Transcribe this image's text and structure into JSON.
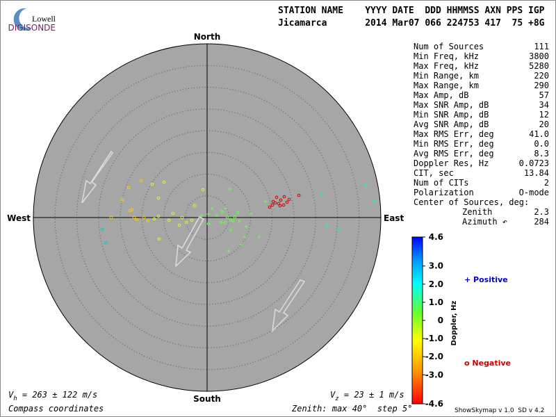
{
  "logo": {
    "top": "Lowell",
    "bottom": "DIGISONDE"
  },
  "header": {
    "columns": "STATION NAME    YYYY DATE  DDD HHMMSS AXN PPS IGP",
    "values": "Jicamarca       2014 Mar07 066 224753 417  75 +8G"
  },
  "compass": {
    "north": "North",
    "south": "South",
    "east": "East",
    "west": "West"
  },
  "stats": [
    [
      "Num of Sources",
      "111"
    ],
    [
      "Min Freq, kHz",
      "3800"
    ],
    [
      "Max Freq, kHz",
      "5280"
    ],
    [
      "Min Range, km",
      "220"
    ],
    [
      "Max Range, km",
      "290"
    ],
    [
      "Max Amp, dB",
      "57"
    ],
    [
      "Max SNR Amp, dB",
      "34"
    ],
    [
      "Min SNR Amp, dB",
      "12"
    ],
    [
      "Avg SNR Amp, dB",
      "20"
    ],
    [
      "Max RMS Err, deg",
      "41.0"
    ],
    [
      "Min RMS Err, deg",
      "0.0"
    ],
    [
      "Avg RMS Err, deg",
      "8.3"
    ],
    [
      "Doppler Res, Hz",
      "0.0723"
    ],
    [
      "CIT, sec",
      "13.84"
    ],
    [
      "Num of CITs",
      "2"
    ],
    [
      "Polarization",
      "O-mode"
    ]
  ],
  "center": {
    "title": "Center of Sources, deg:",
    "rows": [
      [
        "Zenith",
        "2.3"
      ],
      [
        "Azimuth ↶",
        "284"
      ]
    ]
  },
  "colorbar": {
    "label": "Doppler, Hz",
    "ylim": [
      -4.6,
      4.6
    ],
    "yticks": [
      4.6,
      {
        "value": 3,
        "label": "3.0"
      },
      {
        "value": 2,
        "label": "2.0"
      },
      {
        "value": 1,
        "label": "1.0"
      },
      0,
      {
        "value": -1,
        "label": "-1.0"
      },
      {
        "value": -2,
        "label": "-2.0"
      },
      {
        "value": -3,
        "label": "-3.0"
      },
      -4.6
    ]
  },
  "legend": {
    "positive": "+ Positive",
    "negative": "o Negative"
  },
  "footer": {
    "vh_symbol": "V",
    "vh_sub": "h",
    "vh_text": " = 263 ± 122 m/s",
    "vz_symbol": "V",
    "vz_sub": "z",
    "vz_text": " = 23 ± 1 m/s",
    "coords": "Compass coordinates",
    "zenith": "Zenith: max 40°  step 5°",
    "version": "ShowSkymap v 1.0  SD v 4.2"
  }
}
